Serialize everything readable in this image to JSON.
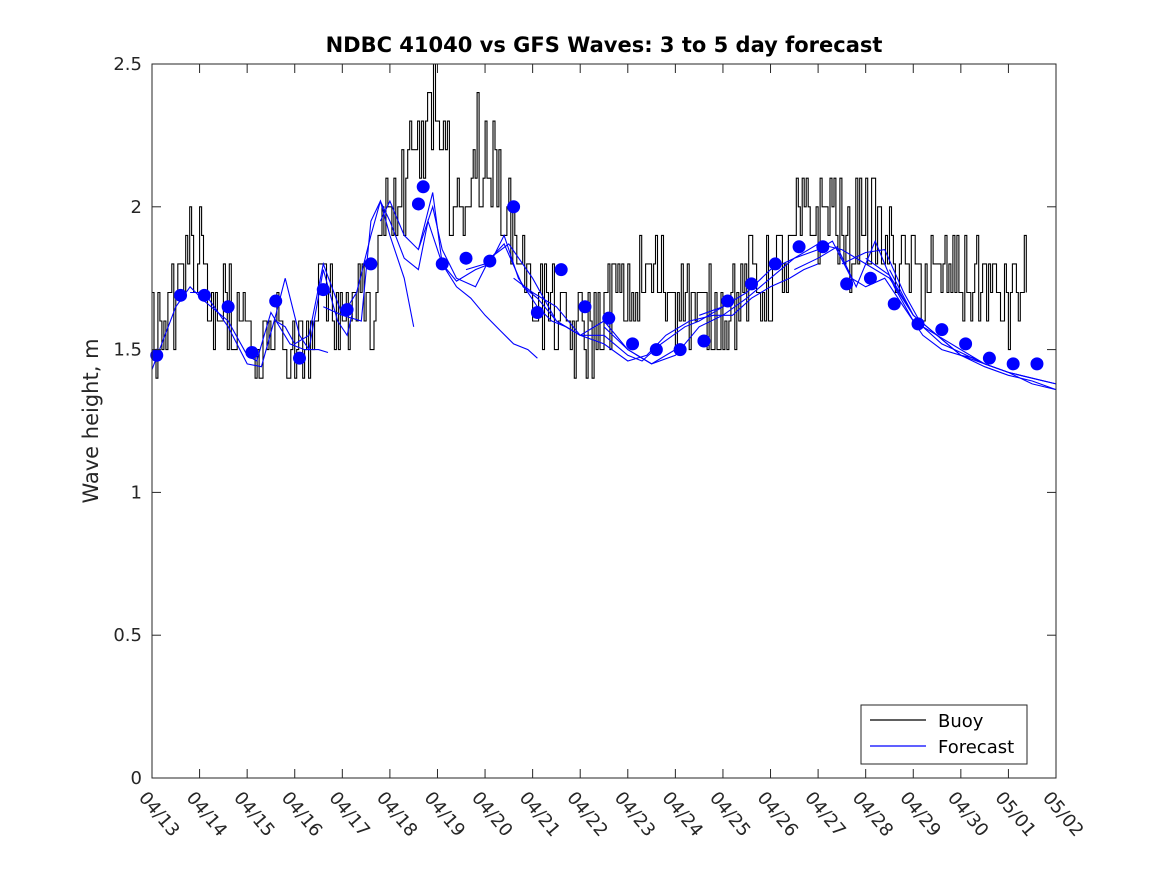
{
  "chart_data": {
    "type": "line",
    "title": "NDBC 41040 vs GFS Waves: 3 to 5 day forecast",
    "xlabel": "",
    "ylabel": "Wave height, m",
    "ylim": [
      0,
      2.5
    ],
    "xlim": [
      0,
      19
    ],
    "yticks": [
      0,
      0.5,
      1,
      1.5,
      2,
      2.5
    ],
    "ytick_labels": [
      "0",
      "0.5",
      "1",
      "1.5",
      "2",
      "2.5"
    ],
    "xtick_labels": [
      "04/13",
      "04/14",
      "04/15",
      "04/16",
      "04/17",
      "04/18",
      "04/19",
      "04/20",
      "04/21",
      "04/22",
      "04/23",
      "04/24",
      "04/25",
      "04/26",
      "04/27",
      "04/28",
      "04/29",
      "04/30",
      "05/01",
      "05/02"
    ],
    "grid": false,
    "legend": {
      "location": "bottom-right",
      "entries": [
        {
          "label": "Buoy",
          "color": "#000000"
        },
        {
          "label": "Forecast",
          "color": "#0000ff"
        }
      ]
    },
    "colors": {
      "buoy": "#000000",
      "forecast": "#0000ff",
      "verification": "#0000ff"
    },
    "buoy_anchors": {
      "x": [
        0.0,
        0.3,
        0.6,
        0.8,
        1.1,
        1.3,
        1.6,
        1.8,
        2.0,
        2.4,
        2.6,
        2.9,
        3.1,
        3.3,
        3.6,
        3.9,
        4.1,
        4.4,
        4.6,
        4.8,
        5.0,
        5.3,
        5.6,
        5.8,
        6.0,
        6.2,
        6.4,
        6.6,
        6.9,
        7.1,
        7.3,
        7.5,
        7.7,
        7.9,
        8.1,
        8.3,
        8.6,
        8.8,
        9.1,
        9.4,
        9.8,
        10.1,
        10.4,
        10.7,
        11.0,
        11.2,
        11.5,
        11.8,
        12.1,
        12.4,
        12.8,
        13.1,
        13.4,
        13.6,
        13.9,
        14.2,
        14.4,
        14.6,
        14.9,
        15.1,
        15.4,
        15.7,
        16.0,
        16.3,
        16.6,
        16.9,
        17.1,
        17.3,
        17.6,
        17.8,
        18.0,
        18.1,
        18.4
      ],
      "y": [
        1.5,
        1.6,
        1.75,
        1.9,
        1.7,
        1.6,
        1.62,
        1.55,
        1.6,
        1.5,
        1.6,
        1.55,
        1.5,
        1.6,
        1.7,
        1.6,
        1.62,
        1.75,
        1.6,
        1.9,
        2.0,
        2.05,
        2.2,
        2.25,
        2.2,
        2.05,
        1.95,
        2.05,
        2.1,
        2.15,
        2.05,
        1.95,
        1.9,
        1.7,
        1.7,
        1.65,
        1.6,
        1.55,
        1.55,
        1.6,
        1.7,
        1.7,
        1.75,
        1.75,
        1.7,
        1.7,
        1.65,
        1.6,
        1.65,
        1.7,
        1.75,
        1.75,
        1.8,
        1.95,
        1.95,
        2.05,
        1.95,
        1.85,
        2.0,
        1.95,
        1.85,
        1.8,
        1.75,
        1.75,
        1.75,
        1.75,
        1.75,
        1.75,
        1.7,
        1.7,
        1.65,
        1.7,
        1.75
      ]
    },
    "buoy_peaks": [
      {
        "x": 5.85,
        "y": 2.4
      },
      {
        "x": 5.93,
        "y": 2.5
      },
      {
        "x": 6.2,
        "y": 2.3
      },
      {
        "x": 6.85,
        "y": 2.4
      },
      {
        "x": 1.0,
        "y": 2.0
      },
      {
        "x": 2.85,
        "y": 1.4
      }
    ],
    "forecast_runs": [
      {
        "x": [
          0.0,
          0.5,
          0.8,
          1.1,
          1.6,
          2.0,
          2.2,
          2.5,
          2.9,
          3.2,
          3.5,
          3.7
        ],
        "y": [
          1.43,
          1.65,
          1.72,
          1.67,
          1.6,
          1.48,
          1.46,
          1.63,
          1.52,
          1.5,
          1.5,
          1.49
        ]
      },
      {
        "x": [
          0.8,
          1.1,
          1.6,
          2.0,
          2.3,
          2.6,
          2.8,
          3.1,
          3.3,
          3.6,
          3.9,
          4.1,
          4.2
        ],
        "y": [
          1.7,
          1.7,
          1.58,
          1.45,
          1.44,
          1.62,
          1.75,
          1.55,
          1.5,
          1.78,
          1.6,
          1.55,
          1.62
        ]
      },
      {
        "x": [
          2.6,
          2.8,
          3.0,
          3.3,
          3.6,
          4.0,
          4.4,
          4.6,
          4.8,
          5.0,
          5.3,
          5.5
        ],
        "y": [
          1.6,
          1.58,
          1.52,
          1.55,
          1.8,
          1.62,
          1.6,
          1.95,
          2.02,
          1.9,
          1.75,
          1.58
        ]
      },
      {
        "x": [
          3.6,
          4.0,
          4.3,
          4.6,
          4.8,
          5.0,
          5.3,
          5.6,
          5.8,
          6.1,
          6.4,
          6.7,
          7.0,
          7.3,
          7.6,
          7.9,
          8.1
        ],
        "y": [
          1.65,
          1.62,
          1.7,
          1.9,
          2.02,
          1.95,
          1.82,
          1.78,
          1.95,
          1.8,
          1.72,
          1.68,
          1.62,
          1.57,
          1.52,
          1.5,
          1.47
        ]
      },
      {
        "x": [
          4.8,
          5.0,
          5.3,
          5.6,
          5.9,
          6.1,
          6.4,
          6.8,
          7.1,
          7.4,
          7.7,
          8.1,
          8.4,
          8.7,
          9.0
        ],
        "y": [
          1.95,
          2.02,
          1.9,
          1.85,
          2.05,
          1.8,
          1.74,
          1.78,
          1.8,
          1.9,
          1.75,
          1.65,
          1.6,
          1.58,
          1.55
        ]
      },
      {
        "x": [
          5.6,
          5.9,
          6.1,
          6.4,
          6.8,
          7.1,
          7.5,
          8.0,
          8.5,
          9.0,
          9.5,
          10.0,
          10.5,
          11.0
        ],
        "y": [
          1.85,
          2.0,
          1.85,
          1.75,
          1.72,
          1.82,
          1.87,
          1.75,
          1.6,
          1.55,
          1.6,
          1.5,
          1.45,
          1.5
        ]
      },
      {
        "x": [
          6.6,
          7.0,
          7.4,
          7.8,
          8.1,
          8.5,
          9.0,
          9.5,
          10.0,
          10.3,
          10.7,
          11.2,
          11.5,
          12.0
        ],
        "y": [
          1.78,
          1.8,
          1.87,
          1.72,
          1.68,
          1.6,
          1.55,
          1.55,
          1.48,
          1.46,
          1.52,
          1.58,
          1.6,
          1.65
        ]
      },
      {
        "x": [
          7.6,
          8.0,
          8.5,
          9.0,
          9.5,
          10.0,
          10.4,
          10.8,
          11.3,
          11.8,
          12.2,
          12.6,
          13.0,
          13.4,
          13.7,
          14.0
        ],
        "y": [
          1.75,
          1.7,
          1.65,
          1.55,
          1.52,
          1.46,
          1.48,
          1.55,
          1.6,
          1.62,
          1.62,
          1.68,
          1.72,
          1.75,
          1.78,
          1.8
        ]
      },
      {
        "x": [
          9.5,
          10.0,
          10.5,
          11.0,
          11.5,
          12.0,
          12.5,
          13.0,
          13.5,
          14.0,
          14.5,
          15.0,
          15.5,
          16.0
        ],
        "y": [
          1.58,
          1.5,
          1.45,
          1.48,
          1.58,
          1.62,
          1.68,
          1.75,
          1.82,
          1.87,
          1.85,
          1.8,
          1.75,
          1.62
        ]
      },
      {
        "x": [
          11.5,
          12.0,
          12.5,
          13.0,
          13.5,
          14.0,
          14.3,
          14.7,
          15.0,
          15.4,
          15.8,
          16.2,
          16.6,
          17.0,
          17.3
        ],
        "y": [
          1.62,
          1.65,
          1.7,
          1.78,
          1.82,
          1.85,
          1.88,
          1.75,
          1.72,
          1.75,
          1.65,
          1.55,
          1.5,
          1.48,
          1.47
        ]
      },
      {
        "x": [
          13.5,
          14.0,
          14.4,
          14.8,
          15.2,
          15.6,
          16.0,
          16.5,
          17.0,
          17.5,
          18.0,
          18.5,
          19.0
        ],
        "y": [
          1.78,
          1.82,
          1.86,
          1.72,
          1.88,
          1.72,
          1.6,
          1.55,
          1.5,
          1.45,
          1.42,
          1.4,
          1.38
        ]
      },
      {
        "x": [
          14.5,
          15.0,
          15.4,
          15.8,
          16.2,
          16.6,
          17.0,
          17.5,
          18.0,
          18.5,
          19.0
        ],
        "y": [
          1.8,
          1.84,
          1.85,
          1.7,
          1.58,
          1.52,
          1.49,
          1.45,
          1.42,
          1.38,
          1.36
        ]
      },
      {
        "x": [
          15.0,
          15.5,
          16.0,
          16.5,
          17.0,
          17.5,
          18.0,
          18.5,
          19.0
        ],
        "y": [
          1.82,
          1.76,
          1.62,
          1.55,
          1.48,
          1.45,
          1.42,
          1.4,
          1.38
        ]
      },
      {
        "x": [
          15.5,
          16.0,
          16.5,
          17.0,
          17.5,
          18.0,
          18.5,
          19.0
        ],
        "y": [
          1.78,
          1.62,
          1.55,
          1.48,
          1.44,
          1.41,
          1.39,
          1.36
        ]
      }
    ],
    "verification_points": {
      "x": [
        0.1,
        0.6,
        1.1,
        1.6,
        2.1,
        2.6,
        3.1,
        3.6,
        4.1,
        4.6,
        5.6,
        5.7,
        6.1,
        6.6,
        7.1,
        7.6,
        8.1,
        8.6,
        9.1,
        9.6,
        10.1,
        10.6,
        11.1,
        11.6,
        12.1,
        12.6,
        13.1,
        13.6,
        14.1,
        14.6,
        15.1,
        15.6,
        16.1,
        16.6,
        17.1,
        17.6,
        18.1,
        18.6
      ],
      "y": [
        1.48,
        1.69,
        1.69,
        1.65,
        1.49,
        1.67,
        1.47,
        1.71,
        1.64,
        1.8,
        2.01,
        2.07,
        1.8,
        1.82,
        1.81,
        2.0,
        1.63,
        1.78,
        1.65,
        1.61,
        1.52,
        1.5,
        1.5,
        1.53,
        1.67,
        1.73,
        1.8,
        1.86,
        1.86,
        1.73,
        1.75,
        1.66,
        1.59,
        1.57,
        1.52,
        1.47,
        1.45,
        1.45
      ]
    }
  }
}
